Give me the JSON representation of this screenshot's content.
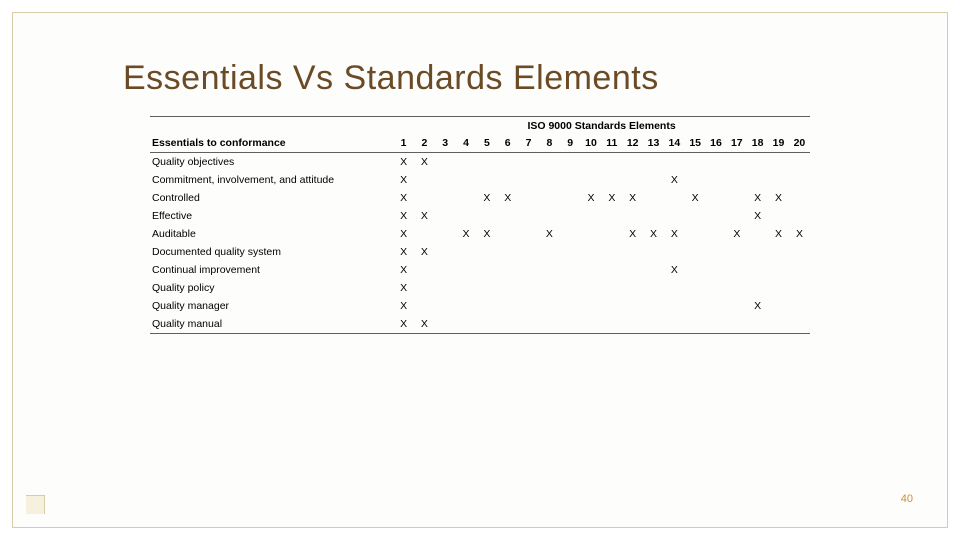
{
  "title": "Essentials Vs Standards Elements",
  "page_number": "40",
  "colors": {
    "title": "#6b4a26",
    "frame_border": "#d9cba7",
    "rule": "#606060",
    "page_num": "#c9903e",
    "background": "#ffffff"
  },
  "fonts": {
    "title_family": "Gill Sans",
    "title_size_pt": 26,
    "body_family": "Verdana",
    "body_size_pt": 8
  },
  "table": {
    "type": "table",
    "super_header": "ISO 9000 Standards Elements",
    "row_header_label": "Essentials to conformance",
    "columns": [
      "1",
      "2",
      "3",
      "4",
      "5",
      "6",
      "7",
      "8",
      "9",
      "10",
      "11",
      "12",
      "13",
      "14",
      "15",
      "16",
      "17",
      "18",
      "19",
      "20"
    ],
    "mark": "X",
    "rows": [
      {
        "label": "Quality objectives",
        "cells": [
          1,
          1,
          0,
          0,
          0,
          0,
          0,
          0,
          0,
          0,
          0,
          0,
          0,
          0,
          0,
          0,
          0,
          0,
          0,
          0
        ]
      },
      {
        "label": "Commitment, involvement, and attitude",
        "cells": [
          1,
          0,
          0,
          0,
          0,
          0,
          0,
          0,
          0,
          0,
          0,
          0,
          0,
          1,
          0,
          0,
          0,
          0,
          0,
          0
        ]
      },
      {
        "label": "Controlled",
        "cells": [
          1,
          0,
          0,
          0,
          1,
          1,
          0,
          0,
          0,
          1,
          1,
          1,
          0,
          0,
          1,
          0,
          0,
          1,
          1,
          0
        ]
      },
      {
        "label": "Effective",
        "cells": [
          1,
          1,
          0,
          0,
          0,
          0,
          0,
          0,
          0,
          0,
          0,
          0,
          0,
          0,
          0,
          0,
          0,
          1,
          0,
          0
        ]
      },
      {
        "label": "Auditable",
        "cells": [
          1,
          0,
          0,
          1,
          1,
          0,
          0,
          1,
          0,
          0,
          0,
          1,
          1,
          1,
          0,
          0,
          1,
          0,
          1,
          1
        ]
      },
      {
        "label": "Documented quality system",
        "cells": [
          1,
          1,
          0,
          0,
          0,
          0,
          0,
          0,
          0,
          0,
          0,
          0,
          0,
          0,
          0,
          0,
          0,
          0,
          0,
          0
        ]
      },
      {
        "label": "Continual improvement",
        "cells": [
          1,
          0,
          0,
          0,
          0,
          0,
          0,
          0,
          0,
          0,
          0,
          0,
          0,
          1,
          0,
          0,
          0,
          0,
          0,
          0
        ]
      },
      {
        "label": "Quality policy",
        "cells": [
          1,
          0,
          0,
          0,
          0,
          0,
          0,
          0,
          0,
          0,
          0,
          0,
          0,
          0,
          0,
          0,
          0,
          0,
          0,
          0
        ]
      },
      {
        "label": "Quality manager",
        "cells": [
          1,
          0,
          0,
          0,
          0,
          0,
          0,
          0,
          0,
          0,
          0,
          0,
          0,
          0,
          0,
          0,
          0,
          1,
          0,
          0
        ]
      },
      {
        "label": "Quality manual",
        "cells": [
          1,
          1,
          0,
          0,
          0,
          0,
          0,
          0,
          0,
          0,
          0,
          0,
          0,
          0,
          0,
          0,
          0,
          0,
          0,
          0
        ]
      }
    ]
  }
}
